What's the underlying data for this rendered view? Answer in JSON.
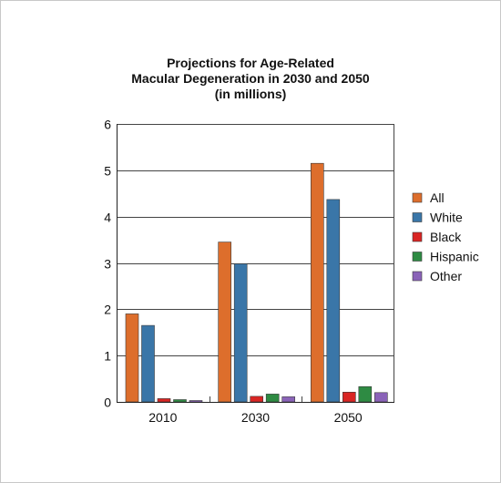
{
  "chart_data": {
    "type": "bar",
    "title_lines": [
      "Projections for Age-Related",
      "Macular Degeneration in 2030 and 2050",
      "(in millions)"
    ],
    "categories": [
      "2010",
      "2030",
      "2050"
    ],
    "series": [
      {
        "name": "All",
        "values": [
          1.9,
          3.45,
          5.15
        ],
        "color": "#dd6e2c"
      },
      {
        "name": "White",
        "values": [
          1.65,
          2.98,
          4.37
        ],
        "color": "#3a76a8"
      },
      {
        "name": "Black",
        "values": [
          0.07,
          0.12,
          0.21
        ],
        "color": "#d92523"
      },
      {
        "name": "Hispanic",
        "values": [
          0.05,
          0.17,
          0.33
        ],
        "color": "#2e8b43"
      },
      {
        "name": "Other",
        "values": [
          0.03,
          0.11,
          0.2
        ],
        "color": "#8a63b8"
      }
    ],
    "ylim": [
      0,
      6
    ],
    "yticks": [
      "0",
      "1",
      "2",
      "3",
      "4",
      "5",
      "6"
    ],
    "grid": true,
    "legend_position": "right"
  }
}
